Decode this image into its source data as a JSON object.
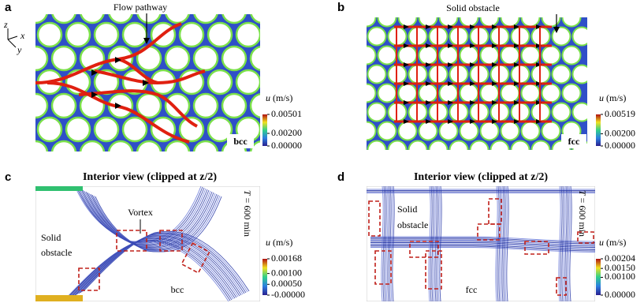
{
  "panels": [
    {
      "label": "a",
      "annotation": "Flow pathway",
      "lattice": "bcc",
      "axes": [
        "z",
        "x",
        "y"
      ],
      "colorbar": {
        "symbol": "u",
        "unit": "(m/s)",
        "ticks": [
          0.00501,
          {
            "value": 0.002,
            "label": "0.00200"
          },
          {
            "value": 0,
            "label": "0.00000"
          }
        ]
      }
    },
    {
      "label": "b",
      "annotation": "Solid obstacle",
      "lattice": "fcc",
      "colorbar": {
        "symbol": "u",
        "unit": "(m/s)",
        "ticks": [
          0.00519,
          {
            "value": 0.002,
            "label": "0.00200"
          },
          {
            "value": 0,
            "label": "0.00000"
          }
        ]
      }
    },
    {
      "label": "c",
      "title": "Interior view (clipped at z/2)",
      "annotation": "Vortex",
      "obstacle": [
        "Solid",
        "obstacle"
      ],
      "lattice": "bcc",
      "time": {
        "symbol": "T",
        "text": "= 600 min"
      },
      "colorbar": {
        "symbol": "u",
        "unit": "(m/s)",
        "ticks": [
          0.00168,
          {
            "value": 0.001,
            "label": "0.00100"
          },
          {
            "value": 0.0005,
            "label": "0.00050"
          },
          {
            "value": 0,
            "label": "-0.00000"
          }
        ]
      }
    },
    {
      "label": "d",
      "title": "Interior view (clipped at z/2)",
      "obstacle": [
        "Solid",
        "obstacle"
      ],
      "lattice": "fcc",
      "time": {
        "symbol": "T",
        "text": "= 600 min"
      },
      "colorbar": {
        "symbol": "u",
        "unit": "(m/s)",
        "ticks": [
          0.00204,
          {
            "value": 0.0015,
            "label": "0.00150"
          },
          {
            "value": 0.001,
            "label": "0.00100"
          },
          {
            "value": 0,
            "label": "0.00000"
          }
        ]
      }
    }
  ]
}
